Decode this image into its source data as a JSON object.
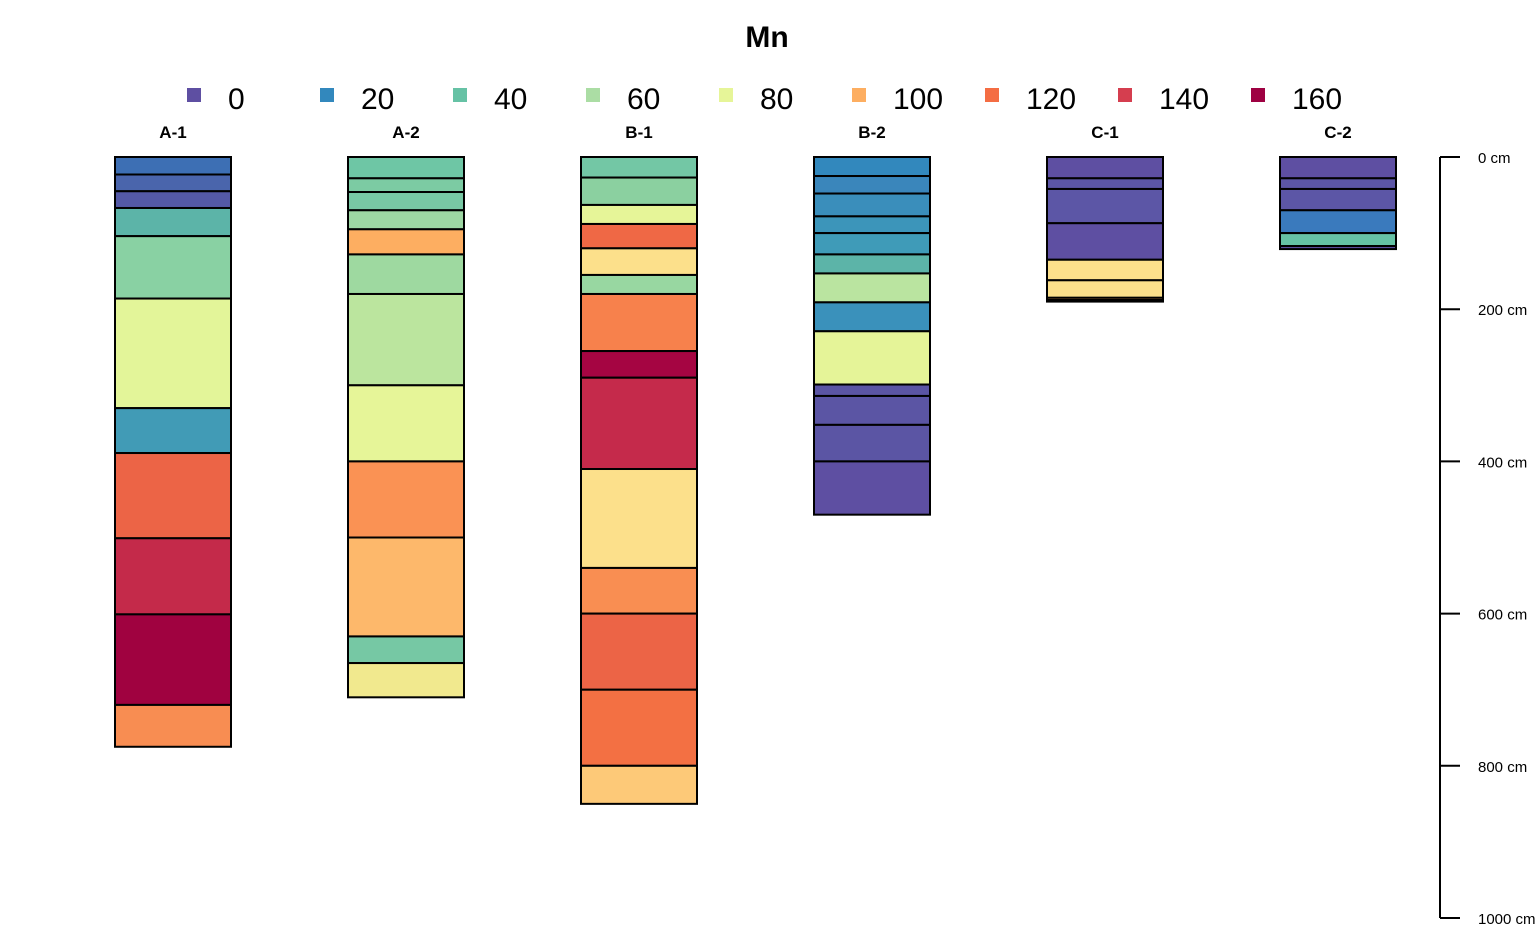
{
  "chart_data": {
    "type": "soil-profile",
    "title": "Mn",
    "legend": {
      "placement": "top",
      "entries": [
        {
          "label": "0",
          "value": 0,
          "color": "#5E4FA2"
        },
        {
          "label": "20",
          "value": 20,
          "color": "#3288BD"
        },
        {
          "label": "40",
          "value": 40,
          "color": "#66C2A5"
        },
        {
          "label": "60",
          "value": 60,
          "color": "#ABDDA4"
        },
        {
          "label": "80",
          "value": 80,
          "color": "#E6F598"
        },
        {
          "label": "100",
          "value": 100,
          "color": "#FDAE61"
        },
        {
          "label": "120",
          "value": 120,
          "color": "#F46D43"
        },
        {
          "label": "140",
          "value": 140,
          "color": "#D53E4F"
        },
        {
          "label": "160",
          "value": 160,
          "color": "#9E0142"
        }
      ]
    },
    "depth_axis": {
      "unit": "cm",
      "range": [
        0,
        1000
      ],
      "ticks": [
        {
          "value": 0,
          "label": "0 cm"
        },
        {
          "value": 200,
          "label": "200 cm"
        },
        {
          "value": 400,
          "label": "400 cm"
        },
        {
          "value": 600,
          "label": "600 cm"
        },
        {
          "value": 800,
          "label": "800 cm"
        },
        {
          "value": 1000,
          "label": "1000 cm"
        }
      ]
    },
    "profiles": [
      {
        "name": "A-1",
        "horizons": [
          {
            "top": 0,
            "bottom": 23,
            "color": "#3D6FB4"
          },
          {
            "top": 23,
            "bottom": 45,
            "color": "#4A65AC"
          },
          {
            "top": 45,
            "bottom": 67,
            "color": "#5459A6"
          },
          {
            "top": 67,
            "bottom": 104,
            "color": "#5CB4A8"
          },
          {
            "top": 104,
            "bottom": 186,
            "color": "#89D1A3"
          },
          {
            "top": 186,
            "bottom": 330,
            "color": "#E3F599"
          },
          {
            "top": 330,
            "bottom": 389,
            "color": "#419BB6"
          },
          {
            "top": 389,
            "bottom": 501,
            "color": "#EC6446"
          },
          {
            "top": 501,
            "bottom": 601,
            "color": "#C42A4A"
          },
          {
            "top": 601,
            "bottom": 720,
            "color": "#A00240"
          },
          {
            "top": 720,
            "bottom": 775,
            "color": "#F88D52"
          }
        ]
      },
      {
        "name": "A-2",
        "horizons": [
          {
            "top": 0,
            "bottom": 28,
            "color": "#6EC6A5"
          },
          {
            "top": 28,
            "bottom": 46,
            "color": "#7CCBA3"
          },
          {
            "top": 46,
            "bottom": 70,
            "color": "#78C8A4"
          },
          {
            "top": 70,
            "bottom": 95,
            "color": "#9DD7A3"
          },
          {
            "top": 95,
            "bottom": 128,
            "color": "#FDAE61"
          },
          {
            "top": 128,
            "bottom": 180,
            "color": "#9ED9A0"
          },
          {
            "top": 180,
            "bottom": 300,
            "color": "#BBE59E"
          },
          {
            "top": 300,
            "bottom": 400,
            "color": "#E6F598"
          },
          {
            "top": 400,
            "bottom": 500,
            "color": "#FA9254"
          },
          {
            "top": 500,
            "bottom": 630,
            "color": "#FDB86B"
          },
          {
            "top": 630,
            "bottom": 665,
            "color": "#76C8A4"
          },
          {
            "top": 665,
            "bottom": 710,
            "color": "#F1E98E"
          }
        ]
      },
      {
        "name": "B-1",
        "horizons": [
          {
            "top": 0,
            "bottom": 27,
            "color": "#73C7A5"
          },
          {
            "top": 27,
            "bottom": 63,
            "color": "#8BD0A0"
          },
          {
            "top": 63,
            "bottom": 88,
            "color": "#E6F598"
          },
          {
            "top": 88,
            "bottom": 120,
            "color": "#EF6845"
          },
          {
            "top": 120,
            "bottom": 155,
            "color": "#FCE08B"
          },
          {
            "top": 155,
            "bottom": 180,
            "color": "#98D7A1"
          },
          {
            "top": 180,
            "bottom": 255,
            "color": "#F7814C"
          },
          {
            "top": 255,
            "bottom": 290,
            "color": "#A50542"
          },
          {
            "top": 290,
            "bottom": 410,
            "color": "#C52A4B"
          },
          {
            "top": 410,
            "bottom": 540,
            "color": "#FCE08B"
          },
          {
            "top": 540,
            "bottom": 600,
            "color": "#F98E52"
          },
          {
            "top": 600,
            "bottom": 700,
            "color": "#EC6446"
          },
          {
            "top": 700,
            "bottom": 800,
            "color": "#F37043"
          },
          {
            "top": 800,
            "bottom": 850,
            "color": "#FDC978"
          }
        ]
      },
      {
        "name": "B-2",
        "horizons": [
          {
            "top": 0,
            "bottom": 25,
            "color": "#3288BD"
          },
          {
            "top": 25,
            "bottom": 48,
            "color": "#3A86BB"
          },
          {
            "top": 48,
            "bottom": 78,
            "color": "#3A8EBB"
          },
          {
            "top": 78,
            "bottom": 100,
            "color": "#3C95BA"
          },
          {
            "top": 100,
            "bottom": 128,
            "color": "#3F9BB8"
          },
          {
            "top": 128,
            "bottom": 153,
            "color": "#5CB4A8"
          },
          {
            "top": 153,
            "bottom": 191,
            "color": "#BAE4A0"
          },
          {
            "top": 191,
            "bottom": 229,
            "color": "#3A91BB"
          },
          {
            "top": 229,
            "bottom": 299,
            "color": "#E5F498"
          },
          {
            "top": 299,
            "bottom": 314,
            "color": "#5B55A4"
          },
          {
            "top": 314,
            "bottom": 352,
            "color": "#5B55A4"
          },
          {
            "top": 352,
            "bottom": 400,
            "color": "#5B55A4"
          },
          {
            "top": 400,
            "bottom": 470,
            "color": "#5E4FA2"
          }
        ]
      },
      {
        "name": "C-1",
        "horizons": [
          {
            "top": 0,
            "bottom": 28,
            "color": "#5E4FA2"
          },
          {
            "top": 28,
            "bottom": 42,
            "color": "#5C56A6"
          },
          {
            "top": 42,
            "bottom": 87,
            "color": "#5C56A6"
          },
          {
            "top": 87,
            "bottom": 135,
            "color": "#5E4FA2"
          },
          {
            "top": 135,
            "bottom": 162,
            "color": "#FCE08B"
          },
          {
            "top": 162,
            "bottom": 185,
            "color": "#FCE08B"
          },
          {
            "top": 185,
            "bottom": 188,
            "color": "#F4A460"
          },
          {
            "top": 188,
            "bottom": 190,
            "color": "#FCE08B"
          }
        ]
      },
      {
        "name": "C-2",
        "horizons": [
          {
            "top": 0,
            "bottom": 28,
            "color": "#5E4FA2"
          },
          {
            "top": 28,
            "bottom": 42,
            "color": "#5C56A6"
          },
          {
            "top": 42,
            "bottom": 70,
            "color": "#5C56A6"
          },
          {
            "top": 70,
            "bottom": 100,
            "color": "#3A7ABD"
          },
          {
            "top": 100,
            "bottom": 117,
            "color": "#66C2A5"
          },
          {
            "top": 117,
            "bottom": 121,
            "color": "#5E4FA2"
          }
        ]
      }
    ]
  }
}
